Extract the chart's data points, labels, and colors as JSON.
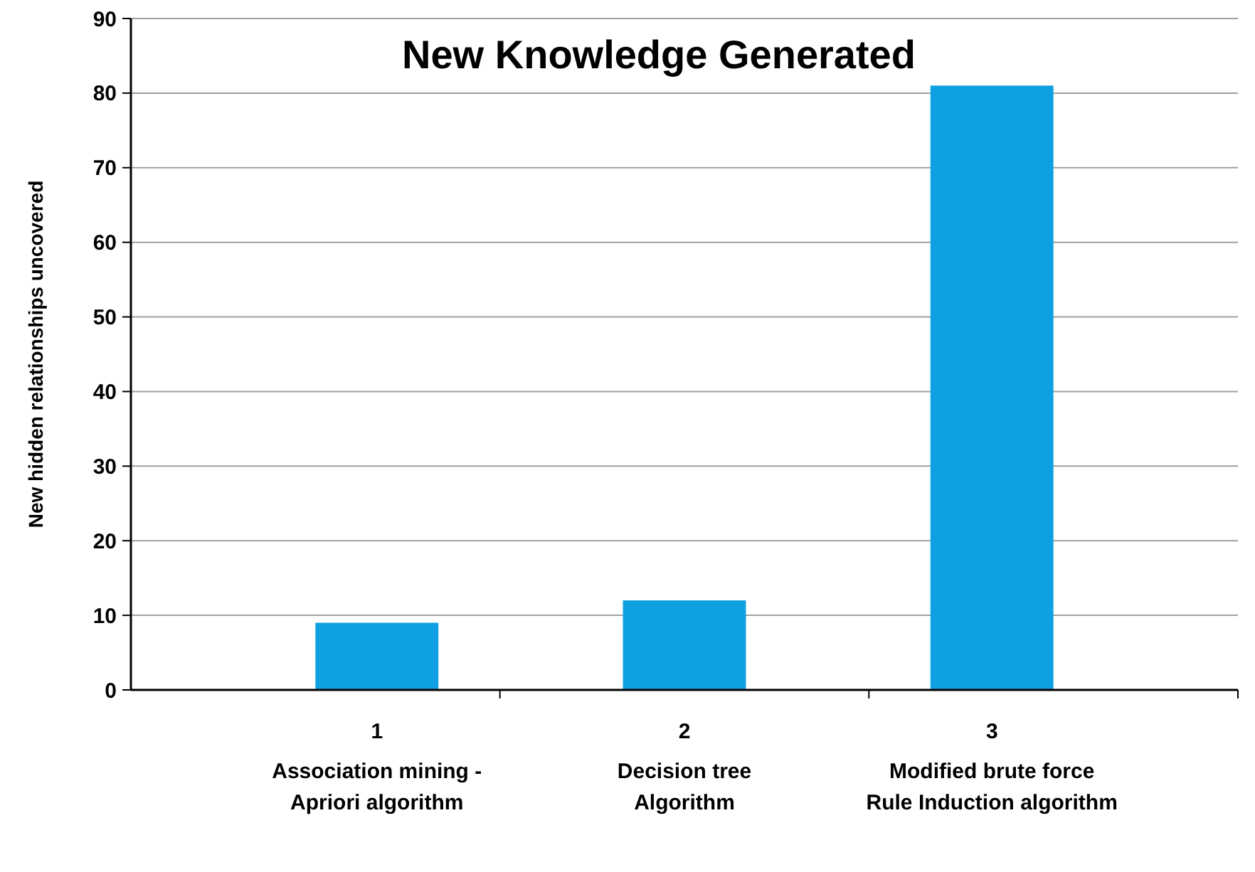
{
  "chart_data": {
    "type": "bar",
    "title": "New Knowledge Generated",
    "ylabel": "New hidden relationships  uncovered",
    "categories": [
      "1\nAssociation mining -\nApriori algorithm",
      "2\nDecision tree\nAlgorithm",
      "3\nModified  brute force\nRule Induction algorithm"
    ],
    "values": [
      9,
      12,
      81
    ],
    "color": "#0ea0e0",
    "ylim": [
      0,
      90
    ],
    "yticks": [
      0,
      10,
      20,
      30,
      40,
      50,
      60,
      70,
      80,
      90
    ],
    "grid": "y"
  }
}
